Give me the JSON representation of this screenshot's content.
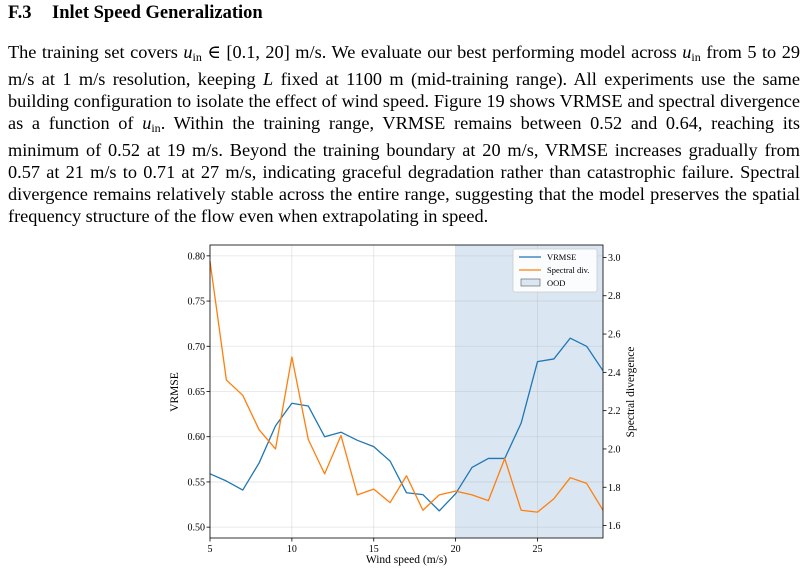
{
  "section": {
    "number": "F.3",
    "title": "Inlet Speed Generalization"
  },
  "paragraph": {
    "p1": "The training set covers ",
    "uin_var": "u",
    "uin_sub": "in",
    "p2": " ∈ [0.1, 20] m/s. We evaluate our best performing model across ",
    "p3": " from 5 to 29 m/s at 1 m/s resolution, keeping ",
    "L_var": "L",
    "p4": " fixed at 1100 m (mid-training range). All experiments use the same building configuration to isolate the effect of wind speed. Figure 19 shows VRMSE and spectral divergence as a function of ",
    "p5": ". Within the training range, VRMSE remains between 0.52 and 0.64, reaching its minimum of 0.52 at 19 m/s. Beyond the training boundary at 20 m/s, VRMSE increases gradually from 0.57 at 21 m/s to 0.71 at 27 m/s, indicating graceful degradation rather than catastrophic failure. Spectral divergence remains relatively stable across the entire range, suggesting that the model preserves the spatial frequency structure of the flow even when extrapolating in speed."
  },
  "chart_data": {
    "type": "line",
    "xlabel": "Wind speed (m/s)",
    "ylabel": "VRMSE",
    "ylabel_right": "Spectral divergence",
    "xlim": [
      5,
      29
    ],
    "ylim": [
      0.488,
      0.812
    ],
    "ylim_right": [
      1.535,
      3.065
    ],
    "xticks": [
      5,
      10,
      15,
      20,
      25
    ],
    "yticks": [
      0.5,
      0.55,
      0.6,
      0.65,
      0.7,
      0.75,
      0.8
    ],
    "yticks_right": [
      1.6,
      1.8,
      2.0,
      2.2,
      2.4,
      2.6,
      2.8,
      3.0
    ],
    "grid": true,
    "legend_position": "top-right",
    "ood_region": [
      20,
      29
    ],
    "x": [
      5,
      6,
      7,
      8,
      9,
      10,
      11,
      12,
      13,
      14,
      15,
      16,
      17,
      18,
      19,
      20,
      21,
      22,
      23,
      24,
      25,
      26,
      27,
      28,
      29
    ],
    "series": [
      {
        "name": "VRMSE",
        "axis": "left",
        "color": "#1f77b4",
        "values": [
          0.559,
          0.551,
          0.541,
          0.571,
          0.612,
          0.637,
          0.634,
          0.6,
          0.605,
          0.596,
          0.589,
          0.573,
          0.538,
          0.536,
          0.518,
          0.537,
          0.566,
          0.576,
          0.576,
          0.615,
          0.683,
          0.686,
          0.709,
          0.7,
          0.673
        ]
      },
      {
        "name": "Spectral div.",
        "axis": "right",
        "color": "#ff7f0e",
        "values": [
          2.98,
          2.36,
          2.28,
          2.1,
          2.0,
          2.48,
          2.05,
          1.87,
          2.07,
          1.76,
          1.79,
          1.72,
          1.86,
          1.68,
          1.76,
          1.78,
          1.76,
          1.73,
          1.95,
          1.68,
          1.67,
          1.74,
          1.85,
          1.82,
          1.68
        ]
      }
    ],
    "legend": [
      "VRMSE",
      "Spectral div.",
      "OOD"
    ]
  }
}
